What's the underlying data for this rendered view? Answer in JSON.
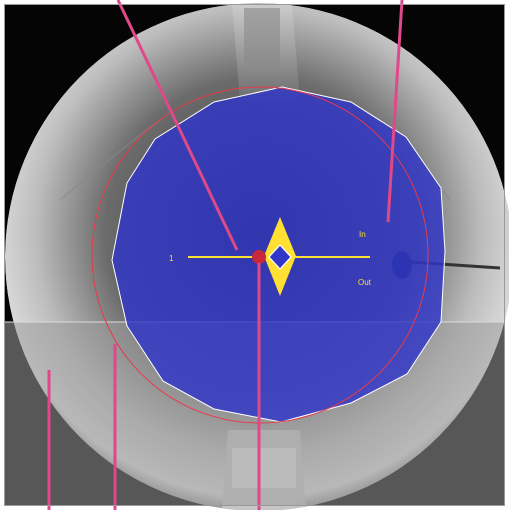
{
  "view": {
    "direction_labels": {
      "in": "In",
      "out": "Out"
    },
    "line_number": "1"
  },
  "colors": {
    "detection_area": "#2f36c8",
    "detection_border": "#ffffff",
    "counting_line": "#ffe033",
    "direction_arrow": "#ffe033",
    "range_circle": "#e83a4a",
    "callout_lines": "#e0488a",
    "frame_background": "#050505",
    "gray_overlay": "#9b9b9b"
  },
  "icons": {
    "anchor_point": "red-dot-icon",
    "direction_marker": "double-arrow-diamond-icon"
  }
}
